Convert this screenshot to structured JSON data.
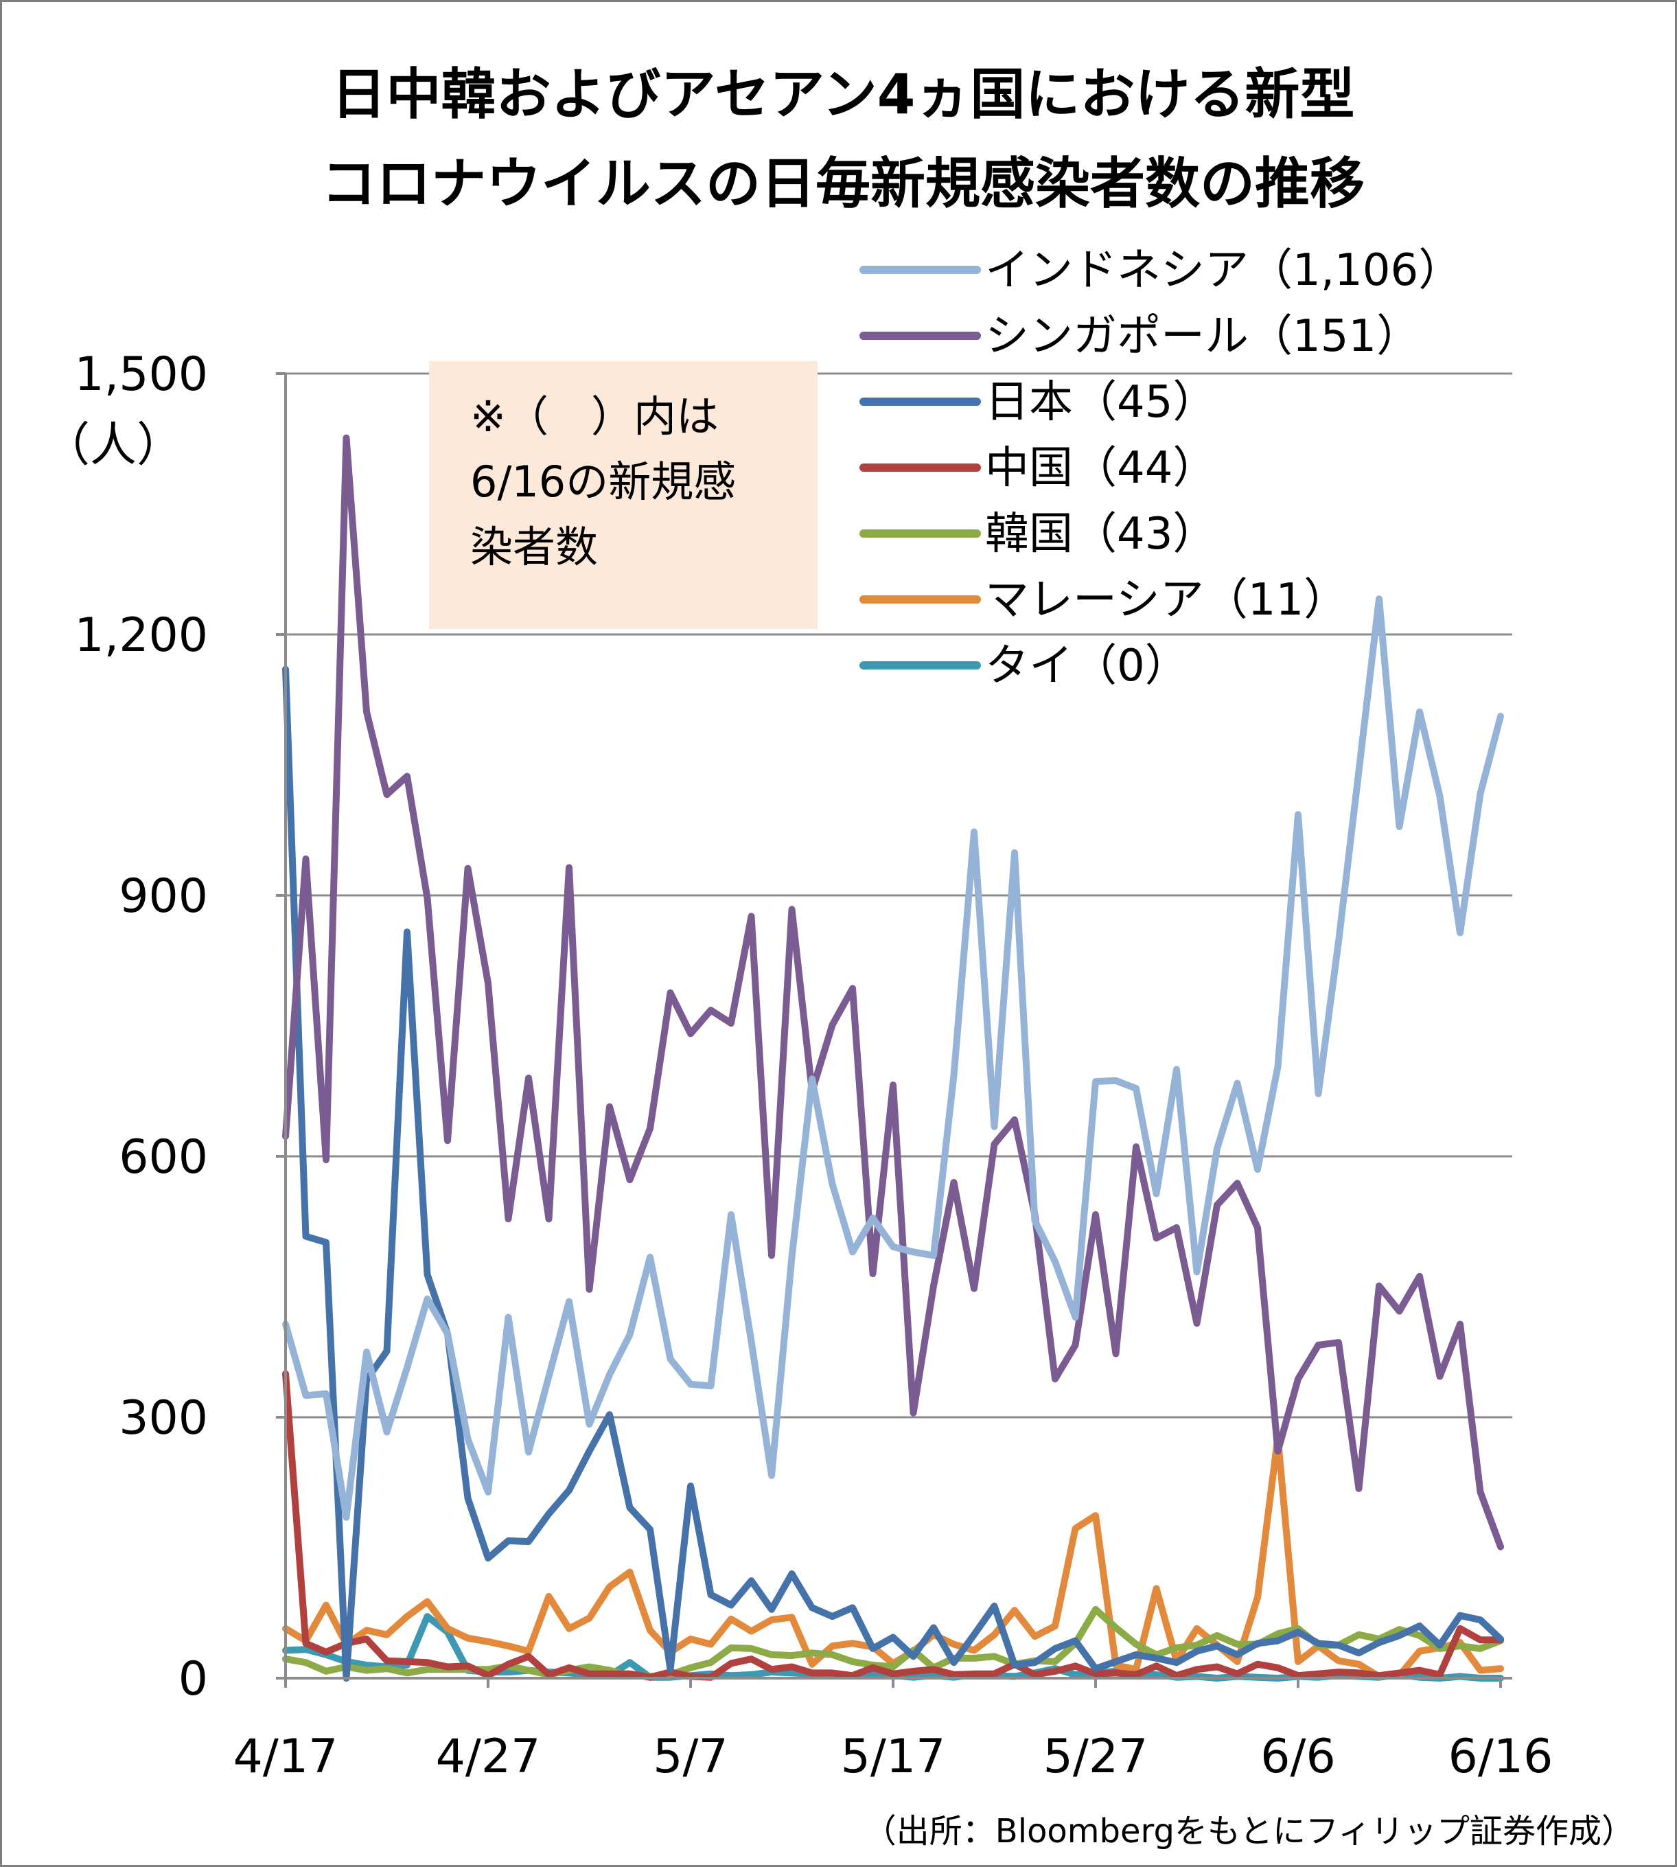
{
  "chart_data": {
    "type": "line",
    "title": [
      "日中韓およびアセアン4ヵ国における新型",
      "コロナウイルスの日毎新規感染者数の推移"
    ],
    "ylabel": "（人）",
    "ylim": [
      0,
      1500
    ],
    "yticks": [
      "1,500",
      "1,200",
      "900",
      "600",
      "300",
      "0"
    ],
    "xticks": [
      "4/17",
      "4/27",
      "5/7",
      "5/17",
      "5/27",
      "6/6",
      "6/16"
    ],
    "x": [
      "4/17",
      "4/18",
      "4/19",
      "4/20",
      "4/21",
      "4/22",
      "4/23",
      "4/24",
      "4/25",
      "4/26",
      "4/27",
      "4/28",
      "4/29",
      "4/30",
      "5/1",
      "5/2",
      "5/3",
      "5/4",
      "5/5",
      "5/6",
      "5/7",
      "5/8",
      "5/9",
      "5/10",
      "5/11",
      "5/12",
      "5/13",
      "5/14",
      "5/15",
      "5/16",
      "5/17",
      "5/18",
      "5/19",
      "5/20",
      "5/21",
      "5/22",
      "5/23",
      "5/24",
      "5/25",
      "5/26",
      "5/27",
      "5/28",
      "5/29",
      "5/30",
      "5/31",
      "6/1",
      "6/2",
      "6/3",
      "6/4",
      "6/5",
      "6/6",
      "6/7",
      "6/8",
      "6/9",
      "6/10",
      "6/11",
      "6/12",
      "6/13",
      "6/14",
      "6/15",
      "6/16"
    ],
    "grid": true,
    "legend_placement": "top-right",
    "note": [
      "※（　）内は",
      "6/16の新規感",
      "染者数"
    ],
    "source": "（出所：Bloombergをもとにフィリップ証券作成）",
    "series": [
      {
        "name": "インドネシア（1,106）",
        "color": "#95B3D7",
        "values": [
          407,
          325,
          327,
          185,
          375,
          283,
          357,
          436,
          396,
          275,
          214,
          415,
          260,
          347,
          433,
          292,
          349,
          395,
          484,
          367,
          338,
          336,
          533,
          387,
          233,
          484,
          689,
          568,
          490,
          529,
          496,
          490,
          486,
          693,
          973,
          634,
          949,
          526,
          479,
          415,
          686,
          687,
          678,
          557,
          700,
          467,
          609,
          684,
          585,
          703,
          993,
          672,
          847,
          1043,
          1241,
          979,
          1111,
          1014,
          857,
          1017,
          1106
        ]
      },
      {
        "name": "シンガポール（151）",
        "color": "#7A5C92",
        "values": [
          623,
          942,
          596,
          1426,
          1111,
          1016,
          1037,
          897,
          618,
          931,
          799,
          528,
          690,
          528,
          932,
          447,
          657,
          573,
          632,
          788,
          741,
          768,
          753,
          876,
          486,
          884,
          675,
          751,
          793,
          465,
          682,
          305,
          451,
          570,
          448,
          614,
          642,
          533,
          344,
          383,
          533,
          373,
          611,
          506,
          518,
          408,
          544,
          569,
          518,
          261,
          344,
          383,
          386,
          218,
          451,
          422,
          462,
          347,
          407,
          214,
          151
        ]
      },
      {
        "name": "日本（45）",
        "color": "#4573A9",
        "values": [
          1160,
          508,
          501,
          0,
          343,
          376,
          858,
          464,
          396,
          207,
          138,
          158,
          157,
          189,
          216,
          261,
          303,
          196,
          171,
          10,
          221,
          96,
          84,
          112,
          79,
          120,
          81,
          71,
          81,
          34,
          47,
          25,
          58,
          18,
          50,
          83,
          15,
          18,
          34,
          43,
          11,
          19,
          27,
          23,
          18,
          31,
          37,
          27,
          40,
          43,
          53,
          40,
          38,
          29,
          41,
          49,
          60,
          38,
          72,
          67,
          45
        ]
      },
      {
        "name": "中国（44）",
        "color": "#B0413E",
        "values": [
          350,
          40,
          30,
          40,
          45,
          20,
          19,
          18,
          13,
          14,
          3,
          16,
          25,
          4,
          12,
          5,
          5,
          5,
          1,
          7,
          2,
          1,
          17,
          22,
          10,
          13,
          6,
          6,
          3,
          12,
          5,
          8,
          10,
          4,
          5,
          5,
          16,
          4,
          8,
          14,
          5,
          6,
          4,
          14,
          3,
          10,
          13,
          5,
          16,
          12,
          3,
          5,
          7,
          6,
          3,
          6,
          9,
          4,
          57,
          44,
          44
        ]
      },
      {
        "name": "韓国（43）",
        "color": "#8CAA45",
        "values": [
          22,
          18,
          8,
          13,
          9,
          11,
          6,
          10,
          10,
          10,
          10,
          14,
          9,
          4,
          9,
          13,
          9,
          3,
          2,
          4,
          12,
          18,
          35,
          34,
          27,
          26,
          29,
          27,
          19,
          15,
          13,
          32,
          12,
          23,
          23,
          25,
          16,
          20,
          19,
          40,
          79,
          58,
          39,
          27,
          35,
          38,
          49,
          39,
          39,
          51,
          57,
          38,
          38,
          50,
          45,
          56,
          49,
          34,
          37,
          34,
          43
        ]
      },
      {
        "name": "マレーシア（11）",
        "color": "#E2893C",
        "values": [
          57,
          43,
          84,
          39,
          55,
          50,
          71,
          88,
          57,
          46,
          42,
          37,
          31,
          94,
          57,
          69,
          105,
          122,
          55,
          30,
          45,
          39,
          68,
          54,
          67,
          70,
          16,
          37,
          40,
          36,
          17,
          31,
          50,
          39,
          32,
          50,
          78,
          48,
          60,
          172,
          187,
          15,
          10,
          103,
          20,
          57,
          38,
          19,
          93,
          277,
          19,
          37,
          20,
          16,
          2,
          3,
          31,
          35,
          41,
          9,
          11
        ]
      },
      {
        "name": "タイ（0）",
        "color": "#3C99B1",
        "values": [
          32,
          33,
          27,
          19,
          15,
          13,
          15,
          71,
          53,
          9,
          7,
          7,
          9,
          7,
          6,
          4,
          3,
          18,
          1,
          1,
          3,
          5,
          3,
          4,
          7,
          6,
          5,
          3,
          3,
          4,
          3,
          1,
          3,
          1,
          4,
          3,
          2,
          6,
          11,
          4,
          6,
          8,
          4,
          4,
          1,
          2,
          0,
          2,
          1,
          0,
          2,
          1,
          3,
          2,
          1,
          4,
          1,
          0,
          2,
          0,
          0
        ]
      }
    ]
  }
}
